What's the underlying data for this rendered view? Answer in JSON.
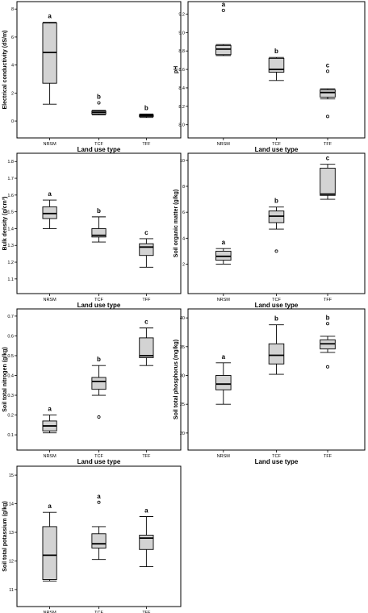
{
  "chart_data": [
    {
      "type": "box",
      "categories": [
        "NRSM",
        "TCF",
        "TFF"
      ],
      "xlabel": "Land use type",
      "ylabel": "Electrical conductivity (dS/m)",
      "ylim": [
        -0.4,
        8.3
      ],
      "yticks": [
        0,
        2,
        4,
        6,
        8
      ],
      "ytick_labels": [
        "0",
        "2",
        "4",
        "6",
        "8"
      ],
      "boxes": [
        {
          "min": 1.2,
          "q1": 2.7,
          "median": 4.9,
          "q3": 7.0,
          "max": 7.05,
          "outliers": [],
          "letter": "a"
        },
        {
          "min": 0.45,
          "q1": 0.5,
          "median": 0.62,
          "q3": 0.72,
          "max": 0.76,
          "outliers": [
            1.3
          ],
          "letter": "b"
        },
        {
          "min": 0.25,
          "q1": 0.32,
          "median": 0.4,
          "q3": 0.45,
          "max": 0.5,
          "outliers": [],
          "letter": "b"
        }
      ]
    },
    {
      "type": "box",
      "categories": [
        "NRSM",
        "TCF",
        "TFF"
      ],
      "xlabel": "Land use type",
      "ylabel": "pH",
      "ylim": [
        7.98,
        9.3
      ],
      "yticks": [
        8.0,
        8.2,
        8.4,
        8.6,
        8.8,
        9.0,
        9.2
      ],
      "ytick_labels": [
        "8.0",
        "8.2",
        "8.4",
        "8.6",
        "8.8",
        "9.0",
        "9.2"
      ],
      "boxes": [
        {
          "min": 8.75,
          "q1": 8.76,
          "median": 8.82,
          "q3": 8.86,
          "max": 8.87,
          "outliers": [
            9.24
          ],
          "letter": "a"
        },
        {
          "min": 8.48,
          "q1": 8.57,
          "median": 8.6,
          "q3": 8.72,
          "max": 8.73,
          "outliers": [],
          "letter": "b"
        },
        {
          "min": 8.28,
          "q1": 8.3,
          "median": 8.35,
          "q3": 8.38,
          "max": 8.39,
          "outliers": [
            8.58,
            8.09
          ],
          "letter": "c"
        }
      ]
    },
    {
      "type": "box",
      "categories": [
        "NRSM",
        "TCF",
        "TFF"
      ],
      "xlabel": "Land use type",
      "ylabel": "Bulk density (g/cm³)",
      "ylim": [
        1.08,
        1.83
      ],
      "yticks": [
        1.1,
        1.2,
        1.3,
        1.4,
        1.5,
        1.6,
        1.7,
        1.8
      ],
      "ytick_labels": [
        "1.1",
        "1.2",
        "1.3",
        "1.4",
        "1.5",
        "1.6",
        "1.7",
        "1.8"
      ],
      "boxes": [
        {
          "min": 1.4,
          "q1": 1.46,
          "median": 1.49,
          "q3": 1.53,
          "max": 1.57,
          "outliers": [],
          "letter": "a"
        },
        {
          "min": 1.32,
          "q1": 1.35,
          "median": 1.36,
          "q3": 1.4,
          "max": 1.47,
          "outliers": [],
          "letter": "b"
        },
        {
          "min": 1.17,
          "q1": 1.24,
          "median": 1.29,
          "q3": 1.31,
          "max": 1.34,
          "outliers": [],
          "letter": "c"
        }
      ]
    },
    {
      "type": "box",
      "categories": [
        "NRSM",
        "TCF",
        "TFF"
      ],
      "xlabel": "Land use type",
      "ylabel": "Soil organic matter (g/kg)",
      "ylim": [
        0.6,
        10.3
      ],
      "yticks": [
        2,
        4,
        6,
        8,
        10
      ],
      "ytick_labels": [
        "2",
        "4",
        "6",
        "8",
        "10"
      ],
      "boxes": [
        {
          "min": 2.0,
          "q1": 2.3,
          "median": 2.6,
          "q3": 3.0,
          "max": 3.2,
          "outliers": [],
          "letter": "a"
        },
        {
          "min": 4.7,
          "q1": 5.2,
          "median": 5.7,
          "q3": 6.1,
          "max": 6.4,
          "outliers": [
            3.0
          ],
          "letter": "b"
        },
        {
          "min": 7.0,
          "q1": 7.3,
          "median": 7.4,
          "q3": 9.4,
          "max": 9.7,
          "outliers": [],
          "letter": "c"
        }
      ]
    },
    {
      "type": "box",
      "categories": [
        "NRSM",
        "TCF",
        "TFF"
      ],
      "xlabel": "Land use type",
      "ylabel": "Soil total nitrogen (g/kg)",
      "ylim": [
        0.08,
        0.72
      ],
      "yticks": [
        0.1,
        0.2,
        0.3,
        0.4,
        0.5,
        0.6,
        0.7
      ],
      "ytick_labels": [
        "0.1",
        "0.2",
        "0.3",
        "0.4",
        "0.5",
        "0.6",
        "0.7"
      ],
      "boxes": [
        {
          "min": 0.11,
          "q1": 0.12,
          "median": 0.145,
          "q3": 0.17,
          "max": 0.2,
          "outliers": [],
          "letter": "a"
        },
        {
          "min": 0.3,
          "q1": 0.33,
          "median": 0.37,
          "q3": 0.39,
          "max": 0.45,
          "outliers": [
            0.19
          ],
          "letter": "b"
        },
        {
          "min": 0.45,
          "q1": 0.49,
          "median": 0.5,
          "q3": 0.59,
          "max": 0.64,
          "outliers": [],
          "letter": "c"
        }
      ]
    },
    {
      "type": "box",
      "categories": [
        "NRSM",
        "TCF",
        "TFF"
      ],
      "xlabel": "Land use type",
      "ylabel": "Soil total phosphorus (mg/kg)",
      "ylim": [
        19.0,
        41.0
      ],
      "yticks": [
        20,
        25,
        30,
        35,
        40
      ],
      "ytick_labels": [
        "20",
        "25",
        "30",
        "35",
        "40"
      ],
      "boxes": [
        {
          "min": 25.0,
          "q1": 27.5,
          "median": 28.5,
          "q3": 30.0,
          "max": 32.2,
          "outliers": [],
          "letter": "a"
        },
        {
          "min": 30.2,
          "q1": 32.0,
          "median": 33.5,
          "q3": 35.5,
          "max": 38.8,
          "outliers": [],
          "letter": "b"
        },
        {
          "min": 34.0,
          "q1": 34.6,
          "median": 35.5,
          "q3": 36.2,
          "max": 36.8,
          "outliers": [
            39.0,
            31.5
          ],
          "letter": "b"
        }
      ]
    },
    {
      "type": "box",
      "categories": [
        "NRSM",
        "TCF",
        "TFF"
      ],
      "xlabel": "Land use type",
      "ylabel": "Soil total potassium (g/kg)",
      "ylim": [
        10.8,
        15.2
      ],
      "yticks": [
        11,
        12,
        13,
        14,
        15
      ],
      "ytick_labels": [
        "11",
        "12",
        "13",
        "14",
        "15"
      ],
      "boxes": [
        {
          "min": 11.3,
          "q1": 11.35,
          "median": 12.2,
          "q3": 13.2,
          "max": 13.7,
          "outliers": [],
          "letter": "a"
        },
        {
          "min": 12.05,
          "q1": 12.45,
          "median": 12.6,
          "q3": 12.95,
          "max": 13.2,
          "outliers": [
            14.05
          ],
          "letter": "a"
        },
        {
          "min": 11.8,
          "q1": 12.4,
          "median": 12.8,
          "q3": 12.9,
          "max": 13.55,
          "outliers": [],
          "letter": "a"
        }
      ]
    }
  ]
}
